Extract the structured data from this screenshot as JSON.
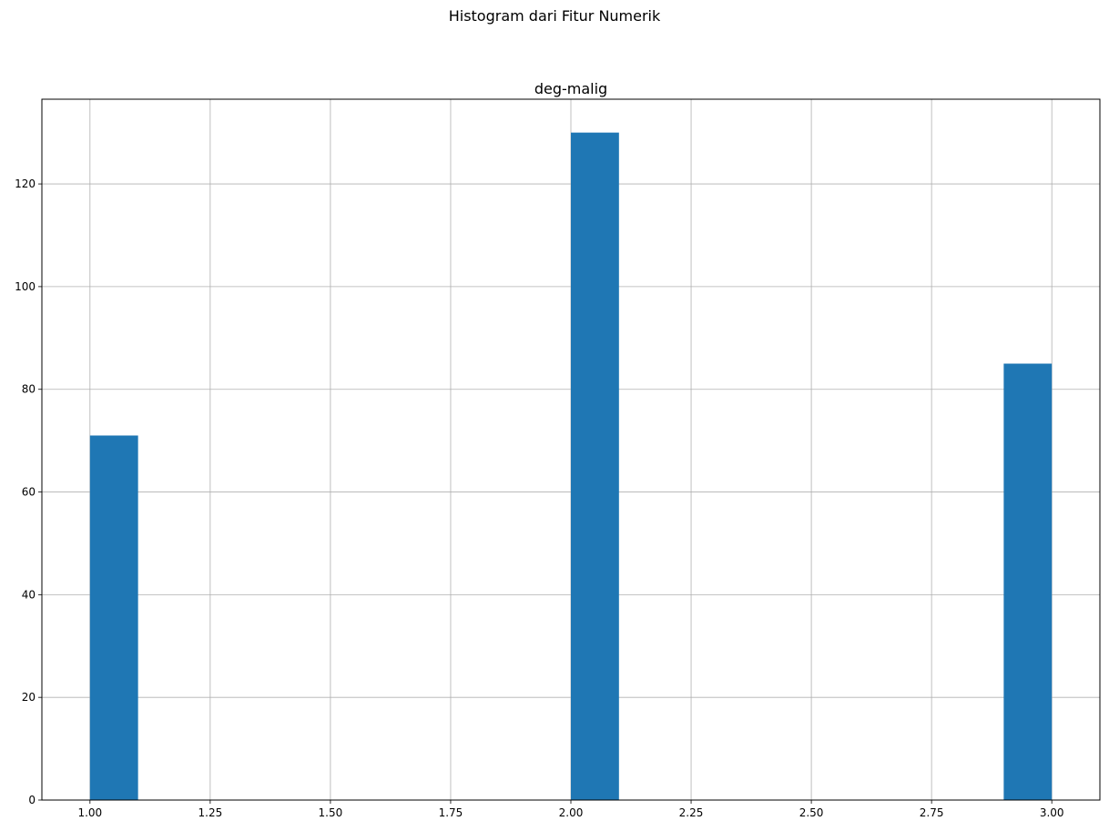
{
  "figure": {
    "suptitle": "Histogram dari Fitur Numerik"
  },
  "chart_data": {
    "type": "bar",
    "title": "deg-malig",
    "xlabel": "",
    "ylabel": "",
    "xlim": [
      0.9,
      3.1
    ],
    "ylim": [
      0,
      136.5
    ],
    "grid": true,
    "bar_color": "#1f77b4",
    "grid_color": "#b0b0b0",
    "bins": [
      {
        "x_start": 1.0,
        "x_end": 1.1,
        "count": 71
      },
      {
        "x_start": 2.0,
        "x_end": 2.1,
        "count": 130
      },
      {
        "x_start": 2.9,
        "x_end": 3.0,
        "count": 85
      }
    ],
    "x_ticks": [
      "1.00",
      "1.25",
      "1.50",
      "1.75",
      "2.00",
      "2.25",
      "2.50",
      "2.75",
      "3.00"
    ],
    "y_ticks": [
      "0",
      "20",
      "40",
      "60",
      "80",
      "100",
      "120"
    ]
  }
}
